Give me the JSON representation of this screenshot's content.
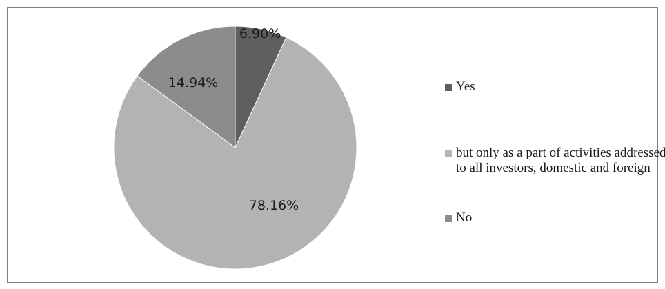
{
  "chart_data": {
    "type": "pie",
    "slices": [
      {
        "label": "Yes",
        "value": 6.9,
        "display": "6.90%",
        "color": "#5f5f5f"
      },
      {
        "label": "but only as a part of activities addressed to all investors, domestic and foreign",
        "value": 78.16,
        "display": "78.16%",
        "color": "#b3b3b3"
      },
      {
        "label": "No",
        "value": 14.94,
        "display": "14.94%",
        "color": "#8c8c8c"
      }
    ],
    "legend_position": "right",
    "start_angle": "top",
    "direction": "clockwise"
  }
}
